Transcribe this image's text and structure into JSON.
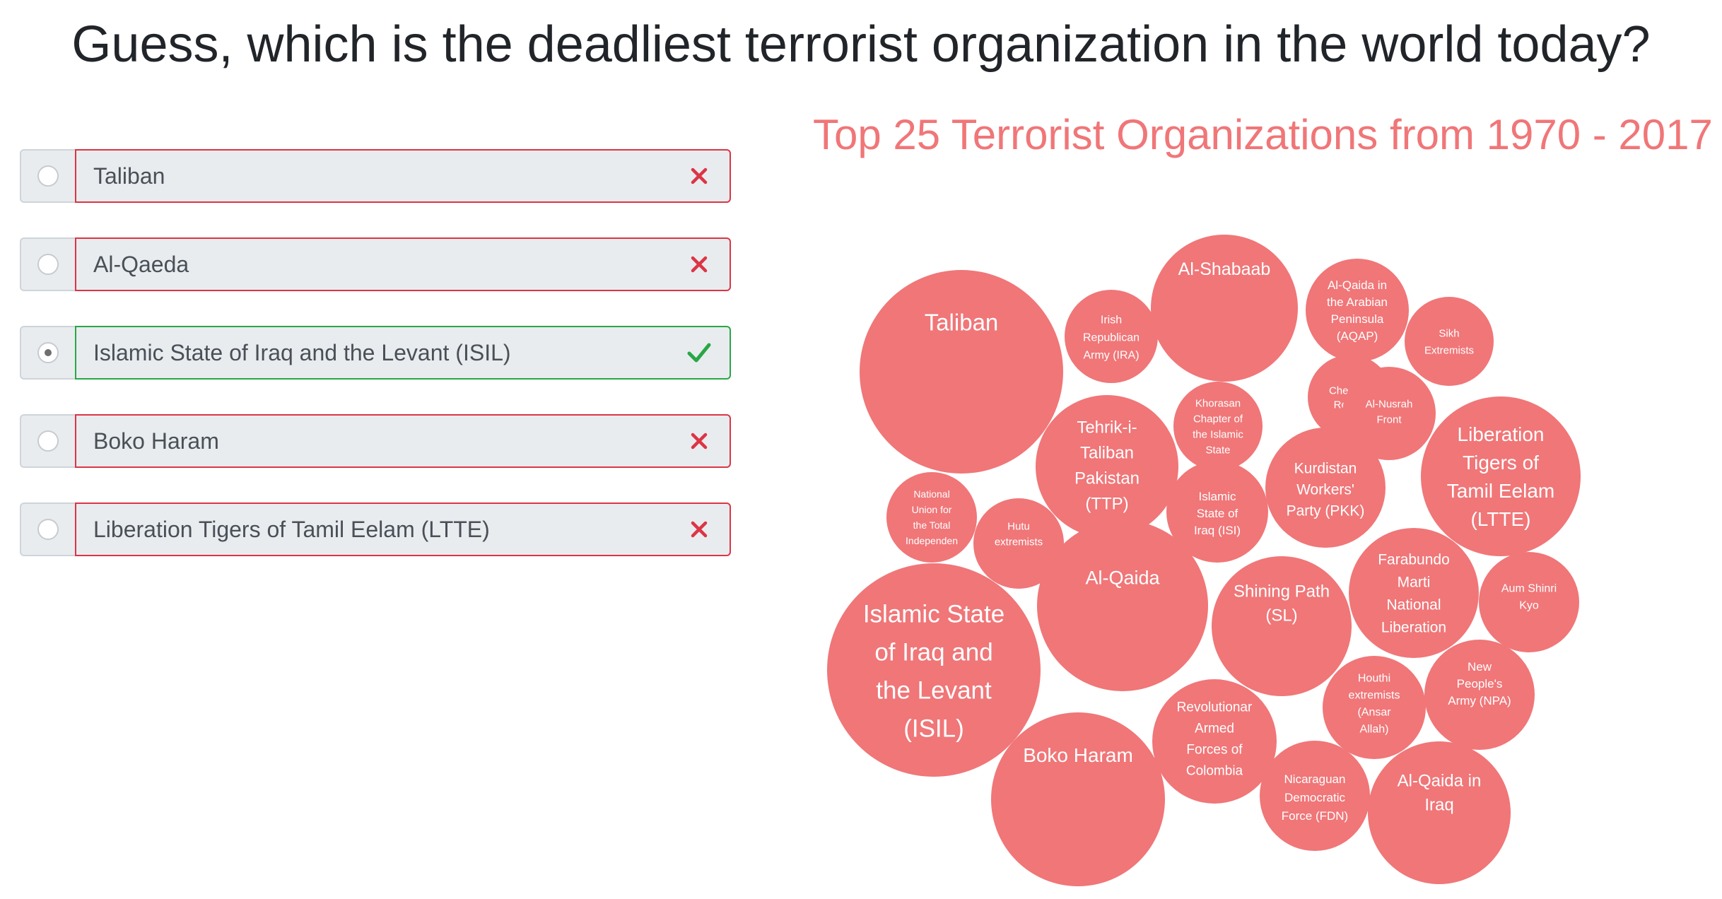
{
  "question": "Guess, which is the deadliest terrorist organization in the world today?",
  "answers": [
    {
      "label": "Taliban",
      "selected": false,
      "result": "incorrect"
    },
    {
      "label": "Al-Qaeda",
      "selected": false,
      "result": "incorrect"
    },
    {
      "label": "Islamic State of Iraq and the Levant (ISIL)",
      "selected": true,
      "result": "correct"
    },
    {
      "label": "Boko Haram",
      "selected": false,
      "result": "incorrect"
    },
    {
      "label": "Liberation Tigers of Tamil Eelam (LTTE)",
      "selected": false,
      "result": "incorrect"
    }
  ],
  "icons": {
    "incorrect": "close-icon",
    "correct": "check-icon"
  },
  "colors": {
    "incorrect": "#dc3545",
    "correct": "#28a745",
    "bubble": "#f07678",
    "title": "#f07678"
  },
  "chart_data": {
    "type": "bubble",
    "title": "Top 25 Terrorist Organizations from 1970 - 2017",
    "series": [
      {
        "label": "Taliban"
      },
      {
        "label": "Irish Republican Army (IRA)"
      },
      {
        "label": "Al-Shabaab"
      },
      {
        "label": "Al-Qaida in the Arabian Peninsula (AQAP)"
      },
      {
        "label": "Sikh Extremists"
      },
      {
        "label": "Chechen Rebels"
      },
      {
        "label": "Khorasan Chapter of the Islamic State"
      },
      {
        "label": "Al-Nusrah Front"
      },
      {
        "label": "Tehrik-i-Taliban Pakistan (TTP)"
      },
      {
        "label": "Liberation Tigers of Tamil Eelam (LTTE)"
      },
      {
        "label": "Kurdistan Workers' Party (PKK)"
      },
      {
        "label": "Islamic State of Iraq (ISI)"
      },
      {
        "label": "National Union for the Total Independen"
      },
      {
        "label": "Hutu extremists"
      },
      {
        "label": "Farabundo Marti National Liberation"
      },
      {
        "label": "Aum Shinri Kyo"
      },
      {
        "label": "Al-Qaida"
      },
      {
        "label": "Shining Path (SL)"
      },
      {
        "label": "Islamic State of Iraq and the Levant (ISIL)"
      },
      {
        "label": "New People's Army (NPA)"
      },
      {
        "label": "Houthi extremists (Ansar Allah)"
      },
      {
        "label": "Revolutionar Armed Forces of Colombia"
      },
      {
        "label": "Boko Haram"
      },
      {
        "label": "Nicaraguan Democratic Force (FDN)"
      },
      {
        "label": "Al-Qaida in Iraq"
      }
    ]
  }
}
